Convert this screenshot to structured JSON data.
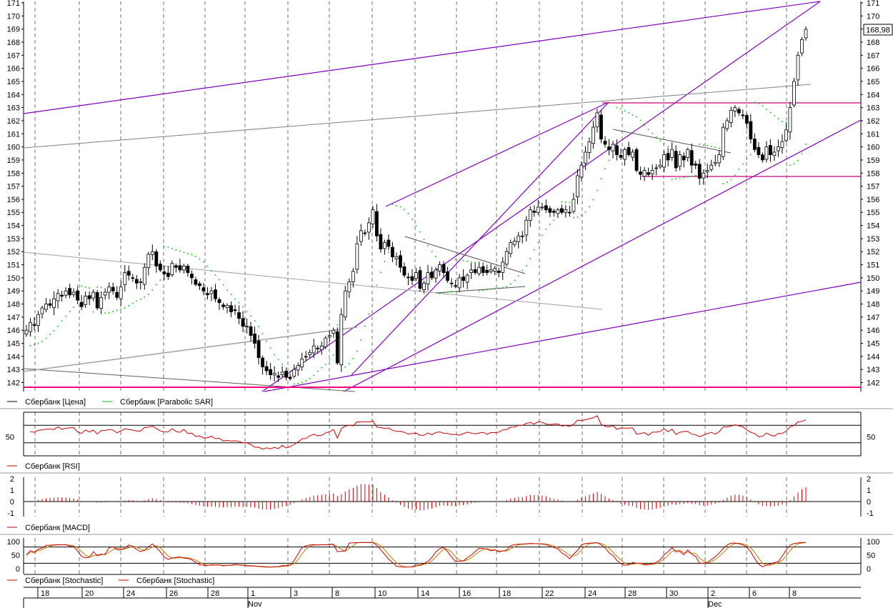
{
  "chart_data": [
    {
      "type": "candlestick",
      "panel": "price",
      "legend": [
        {
          "label": "Сбербанк [Цена]",
          "color": "#000000"
        },
        {
          "label": "Сбербанк [Parabolic SAR]",
          "color": "#00c000"
        }
      ],
      "y_ticks": [
        142,
        143,
        144,
        145,
        146,
        147,
        148,
        149,
        150,
        151,
        152,
        153,
        154,
        155,
        156,
        157,
        158,
        159,
        160,
        161,
        162,
        163,
        164,
        165,
        166,
        167,
        168,
        169,
        170,
        171
      ],
      "ylim": [
        141.5,
        171.2
      ],
      "last_price_label": "168,98",
      "close_series": [
        146.0,
        146.6,
        146.4,
        147.2,
        147.7,
        148.0,
        147.9,
        148.4,
        148.8,
        148.6,
        149.0,
        148.7,
        148.9,
        148.3,
        147.8,
        148.6,
        148.4,
        148.9,
        147.7,
        148.5,
        148.9,
        149.3,
        149.0,
        148.5,
        149.3,
        150.4,
        150.2,
        150.0,
        149.6,
        149.7,
        150.8,
        151.8,
        152.0,
        150.9,
        150.6,
        150.3,
        150.1,
        151.1,
        150.8,
        150.6,
        150.9,
        150.4,
        150.0,
        149.5,
        149.4,
        149.0,
        148.7,
        149.0,
        148.4,
        148.1,
        147.8,
        147.9,
        147.4,
        147.5,
        146.9,
        146.3,
        146.3,
        145.6,
        145.0,
        143.9,
        143.2,
        142.9,
        142.6,
        142.7,
        142.4,
        142.8,
        142.4,
        142.3,
        143.0,
        143.3,
        143.8,
        144.0,
        144.3,
        144.8,
        144.6,
        144.8,
        145.4,
        145.6,
        146.0,
        143.5,
        147.2,
        149.0,
        149.7,
        150.5,
        152.6,
        153.6,
        153.4,
        154.2,
        155.2,
        153.2,
        152.2,
        152.7,
        152.4,
        151.6,
        151.6,
        150.8,
        150.2,
        150.0,
        149.8,
        150.4,
        149.2,
        149.6,
        150.4,
        150.0,
        150.6,
        151.0,
        150.4,
        149.8,
        149.6,
        149.4,
        150.0,
        149.8,
        150.2,
        150.6,
        150.4,
        150.8,
        150.4,
        150.4,
        150.6,
        150.7,
        150.4,
        151.2,
        152.0,
        152.7,
        152.8,
        153.2,
        153.2,
        154.4,
        155.2,
        155.0,
        155.4,
        155.4,
        155.2,
        155.0,
        155.0,
        155.2,
        155.0,
        155.2,
        155.0,
        156.0,
        157.8,
        158.6,
        159.6,
        160.4,
        161.5,
        162.6,
        160.6,
        160.2,
        159.8,
        160.2,
        159.4,
        159.2,
        159.8,
        159.4,
        159.6,
        158.2,
        157.9,
        158.2,
        157.9,
        158.2,
        158.4,
        158.6,
        159.4,
        159.0,
        159.8,
        158.4,
        159.4,
        159.0,
        159.8,
        158.6,
        158.6,
        157.6,
        158.0,
        158.2,
        158.6,
        158.8,
        159.4,
        161.5,
        162.0,
        162.8,
        163.0,
        162.6,
        162.4,
        161.8,
        160.6,
        159.8,
        159.4,
        159.0,
        160.0,
        159.4,
        159.6,
        160.0,
        160.4,
        161.3,
        163.0,
        165.0,
        167.0,
        168.2,
        168.98
      ],
      "date_ticks": [
        "18",
        "20",
        "24",
        "26",
        "28",
        "1",
        "3",
        "8",
        "10",
        "14",
        "16",
        "18",
        "22",
        "24",
        "28",
        "30",
        "2",
        "6",
        "8"
      ],
      "month_labels": [
        "Nov",
        "Dec"
      ]
    },
    {
      "type": "line",
      "panel": "rsi",
      "legend": [
        {
          "label": "Сбербанк [RSI]",
          "color": "#cc0000"
        }
      ],
      "y_ticks": [
        50
      ],
      "ylim": [
        0,
        100
      ],
      "levels": [
        30,
        70
      ]
    },
    {
      "type": "bar",
      "panel": "macd",
      "legend": [
        {
          "label": "Сбербанк [MACD]",
          "color": "#cc0000"
        }
      ],
      "y_ticks": [
        2,
        1,
        0,
        -1
      ],
      "ylim": [
        -1.7,
        2.2
      ]
    },
    {
      "type": "line",
      "panel": "stochastic",
      "legend": [
        {
          "label": "Сбербанк [Stochastic]",
          "color": "#cc0000"
        },
        {
          "label": "Сбербанк [Stochastic]",
          "color": "#cc0000"
        }
      ],
      "y_ticks": [
        100,
        50,
        0
      ],
      "ylim": [
        -8,
        110
      ],
      "levels": [
        20,
        80
      ]
    }
  ],
  "colors": {
    "candle": "#000000",
    "sar": "#00c000",
    "trend_purple": "#8000c0",
    "support_magenta": "#cc0080",
    "indicator_red": "#cc0000",
    "baseline": "#ff0080"
  }
}
